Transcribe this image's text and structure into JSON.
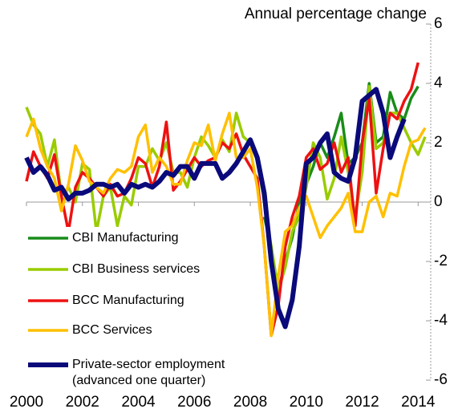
{
  "chart_data": {
    "type": "line",
    "y_axis_label": "Annual percentage change",
    "x": [
      2000,
      2000.25,
      2000.5,
      2000.75,
      2001,
      2001.25,
      2001.5,
      2001.75,
      2002,
      2002.25,
      2002.5,
      2002.75,
      2003,
      2003.25,
      2003.5,
      2003.75,
      2004,
      2004.25,
      2004.5,
      2004.75,
      2005,
      2005.25,
      2005.5,
      2005.75,
      2006,
      2006.25,
      2006.5,
      2006.75,
      2007,
      2007.25,
      2007.5,
      2007.75,
      2008,
      2008.25,
      2008.5,
      2008.75,
      2009,
      2009.25,
      2009.5,
      2009.75,
      2010,
      2010.25,
      2010.5,
      2010.75,
      2011,
      2011.25,
      2011.5,
      2011.75,
      2012,
      2012.25,
      2012.5,
      2012.75,
      2013,
      2013.25,
      2013.5,
      2013.75,
      2014,
      2014.25
    ],
    "series": [
      {
        "name": "CBI Manufacturing",
        "color": "#1a8c1a",
        "width": 3.5,
        "values": [
          null,
          null,
          null,
          null,
          null,
          null,
          null,
          null,
          null,
          null,
          null,
          null,
          null,
          null,
          null,
          null,
          null,
          null,
          null,
          null,
          null,
          null,
          null,
          null,
          null,
          null,
          null,
          null,
          null,
          null,
          null,
          null,
          null,
          null,
          -0.5,
          -1.5,
          -3.0,
          -2.0,
          -1.2,
          0.0,
          0.6,
          1.2,
          2.0,
          1.5,
          2.2,
          3.0,
          1.3,
          1.5,
          2.0,
          4.0,
          2.0,
          2.2,
          3.7,
          3.0,
          2.8,
          3.5,
          3.9,
          null
        ]
      },
      {
        "name": "CBI Business services",
        "color": "#99cc00",
        "width": 3.5,
        "values": [
          3.2,
          2.6,
          2.3,
          1.2,
          2.1,
          0.2,
          0.5,
          0.0,
          1.3,
          1.1,
          -1.0,
          0.2,
          0.5,
          -0.8,
          0.2,
          -0.1,
          1.2,
          1.2,
          1.8,
          1.4,
          2.0,
          1.0,
          1.0,
          0.5,
          1.5,
          2.2,
          1.9,
          1.5,
          2.1,
          1.7,
          3.0,
          2.2,
          2.0,
          1.4,
          0.0,
          -1.5,
          -3.0,
          -2.2,
          -1.0,
          -0.5,
          0.5,
          2.0,
          1.5,
          0.1,
          0.8,
          2.2,
          1.0,
          -0.5,
          1.0,
          3.9,
          1.8,
          2.0,
          3.0,
          3.0,
          2.5,
          2.0,
          1.6,
          2.2
        ]
      },
      {
        "name": "BCC Manufacturing",
        "color": "#ee1111",
        "width": 3.5,
        "values": [
          0.7,
          1.7,
          1.2,
          0.8,
          1.6,
          0.2,
          -1.0,
          0.5,
          1.0,
          0.8,
          0.5,
          0.2,
          0.6,
          0.2,
          0.3,
          0.8,
          1.5,
          1.3,
          0.5,
          1.2,
          2.7,
          0.4,
          0.7,
          1.1,
          1.5,
          1.2,
          1.4,
          1.5,
          2.0,
          1.8,
          2.3,
          1.6,
          1.2,
          0.8,
          -1.5,
          -4.5,
          -3.5,
          -1.5,
          -0.5,
          0.2,
          1.5,
          1.8,
          1.1,
          1.3,
          2.0,
          1.0,
          1.5,
          -0.8,
          2.0,
          3.5,
          0.3,
          1.8,
          3.0,
          2.8,
          3.4,
          3.8,
          4.7,
          null
        ]
      },
      {
        "name": "BCC Services",
        "color": "#ffc000",
        "width": 3.5,
        "values": [
          2.2,
          2.8,
          1.8,
          1.2,
          0.8,
          -0.3,
          0.6,
          1.9,
          1.4,
          0.7,
          0.5,
          0.3,
          0.8,
          1.1,
          1.0,
          1.2,
          2.2,
          2.6,
          1.0,
          1.5,
          1.2,
          0.6,
          0.6,
          1.4,
          2.0,
          1.9,
          2.6,
          1.4,
          2.3,
          3.0,
          1.5,
          1.5,
          1.8,
          0.5,
          -1.5,
          -4.5,
          -2.5,
          -1.0,
          -0.8,
          -0.2,
          0.2,
          -0.5,
          -1.2,
          -0.8,
          -0.5,
          -0.2,
          0.3,
          -1.0,
          -1.0,
          0.0,
          0.2,
          -0.5,
          0.3,
          0.2,
          1.2,
          2.0,
          2.1,
          2.5
        ]
      },
      {
        "name": "Private-sector employment",
        "note": "(advanced one quarter)",
        "color": "#0a0a7a",
        "width": 6,
        "values": [
          1.5,
          1.0,
          1.2,
          0.9,
          0.4,
          0.5,
          0.1,
          0.3,
          0.3,
          0.4,
          0.6,
          0.6,
          0.5,
          0.6,
          0.3,
          0.6,
          0.5,
          0.6,
          0.5,
          0.7,
          1.0,
          0.9,
          1.2,
          1.2,
          0.8,
          1.3,
          1.3,
          1.3,
          0.8,
          1.0,
          1.3,
          1.7,
          2.1,
          1.5,
          0.3,
          -2.0,
          -3.6,
          -4.2,
          -3.3,
          -1.5,
          1.3,
          1.5,
          2.0,
          2.3,
          1.0,
          0.8,
          0.7,
          1.5,
          3.4,
          3.6,
          3.8,
          3.0,
          1.5,
          2.2,
          2.8,
          null,
          null,
          null
        ]
      }
    ],
    "xlim": [
      2000,
      2014.45
    ],
    "xticks": [
      2000,
      2002,
      2004,
      2006,
      2008,
      2010,
      2012,
      2014
    ],
    "ylim": [
      -6,
      6
    ],
    "yticks": [
      -6,
      -4,
      -2,
      0,
      2,
      4,
      6
    ]
  }
}
